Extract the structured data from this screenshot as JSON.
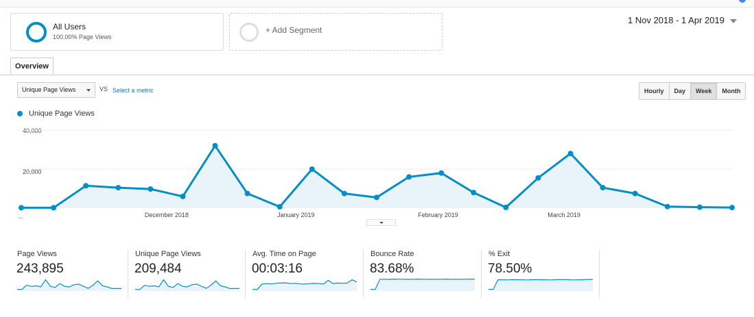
{
  "segments": {
    "all_users": {
      "name": "All Users",
      "sub": "100.00% Page Views"
    },
    "add_segment": "+ Add Segment"
  },
  "date_range": "1 Nov 2018 - 1 Apr 2019",
  "tabs": [
    {
      "label": "Overview"
    }
  ],
  "controls": {
    "metric_select": "Unique Page Views",
    "vs_label": "VS",
    "select_metric": "Select a metric",
    "granularity": [
      "Hourly",
      "Day",
      "Week",
      "Month"
    ],
    "active_granularity": "Week"
  },
  "chart_data": {
    "type": "line",
    "legend": "Unique Page Views",
    "color": "#058dc7",
    "y_ticks": [
      "40,000",
      "20,000"
    ],
    "ylim": [
      0,
      40000
    ],
    "x_labels": [
      "...",
      "December 2018",
      "January 2019",
      "February 2019",
      "March 2019"
    ],
    "x_label_at": [
      -0.1,
      4.5,
      8.5,
      12.9,
      16.8
    ],
    "values": [
      200,
      200,
      11500,
      10500,
      9800,
      6000,
      32000,
      7500,
      700,
      20000,
      7500,
      5500,
      16000,
      18000,
      8000,
      400,
      15500,
      28000,
      10500,
      7500,
      800,
      500,
      300
    ]
  },
  "scorecards": [
    {
      "title": "Page Views",
      "value": "243,895",
      "spark": [
        2,
        2,
        40,
        30,
        35,
        25,
        90,
        30,
        20,
        55,
        30,
        25,
        45,
        50,
        30,
        12,
        40,
        80,
        35,
        25,
        10,
        10,
        10
      ]
    },
    {
      "title": "Unique Page Views",
      "value": "209,484",
      "spark": [
        2,
        2,
        40,
        30,
        35,
        25,
        90,
        30,
        20,
        55,
        30,
        25,
        45,
        50,
        30,
        12,
        40,
        80,
        35,
        25,
        10,
        10,
        10
      ]
    },
    {
      "title": "Avg. Time on Page",
      "value": "00:03:16",
      "spark": [
        2,
        2,
        50,
        55,
        52,
        58,
        60,
        62,
        55,
        58,
        52,
        50,
        55,
        57,
        55,
        52,
        85,
        55,
        60,
        58,
        60,
        90,
        70
      ]
    },
    {
      "title": "Bounce Rate",
      "value": "83.68%",
      "spark": [
        2,
        2,
        95,
        95,
        94,
        96,
        95,
        95,
        94,
        95,
        96,
        95,
        95,
        94,
        95,
        95,
        96,
        95,
        94,
        95,
        95,
        96,
        96
      ]
    },
    {
      "title": "% Exit",
      "value": "78.50%",
      "spark": [
        2,
        2,
        90,
        90,
        89,
        91,
        90,
        90,
        89,
        90,
        91,
        90,
        90,
        89,
        90,
        92,
        91,
        90,
        89,
        90,
        90,
        93,
        93
      ]
    }
  ]
}
